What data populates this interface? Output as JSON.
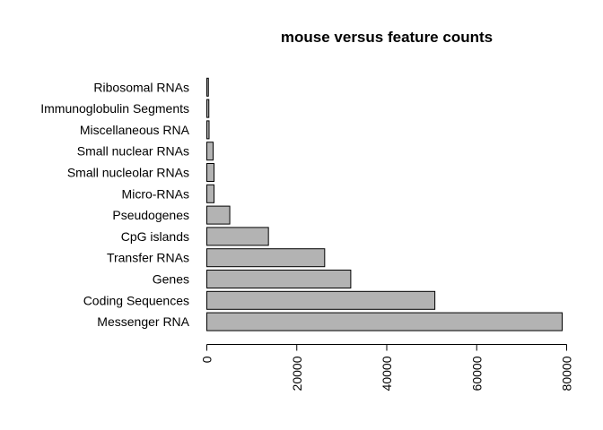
{
  "chart_data": {
    "type": "bar",
    "orientation": "horizontal",
    "title": "mouse versus feature counts",
    "xlabel": "",
    "ylabel": "",
    "categories": [
      "Messenger RNA",
      "Coding Sequences",
      "Genes",
      "Transfer RNAs",
      "CpG islands",
      "Pseudogenes",
      "Micro-RNAs",
      "Small nucleolar RNAs",
      "Small nuclear RNAs",
      "Miscellaneous RNA",
      "Immunoglobulin Segments",
      "Ribosomal RNAs"
    ],
    "values": [
      79000,
      50700,
      32000,
      26200,
      13700,
      5100,
      1600,
      1600,
      1400,
      500,
      450,
      350
    ],
    "xlim": [
      0,
      80000
    ],
    "xticks": [
      0,
      20000,
      40000,
      60000,
      80000
    ],
    "tick_label_rotation": "vertical",
    "grid": false,
    "legend": "none",
    "bar_color": "#b3b3b3"
  }
}
